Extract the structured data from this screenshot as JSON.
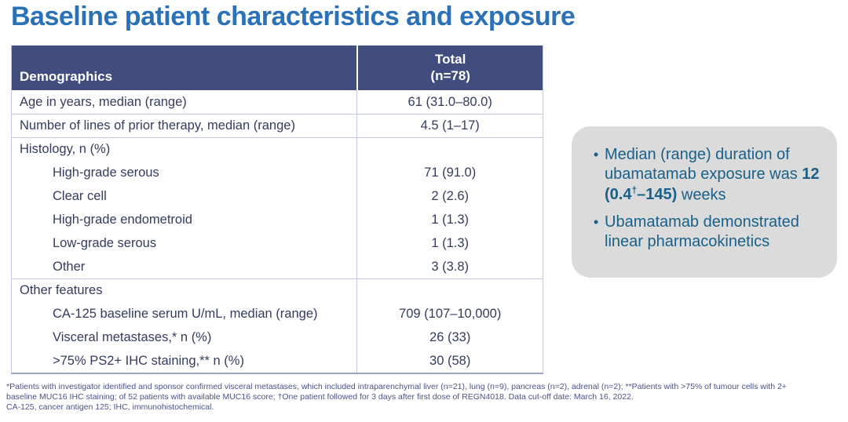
{
  "title": "Baseline patient characteristics and exposure",
  "table": {
    "header": {
      "col1": "Demographics",
      "col2_line1": "Total",
      "col2_line2": "(n=78)"
    },
    "rows": [
      {
        "label": "Age in years, median (range)",
        "value": "61 (31.0–80.0)"
      },
      {
        "label": "Number of lines of prior therapy, median (range)",
        "value": "4.5 (1–17)"
      },
      {
        "label": "Histology, n (%)",
        "value": ""
      },
      {
        "label": "High-grade serous",
        "value": "71 (91.0)"
      },
      {
        "label": "Clear cell",
        "value": "2 (2.6)"
      },
      {
        "label": "High-grade endometroid",
        "value": "1 (1.3)"
      },
      {
        "label": "Low-grade serous",
        "value": "1 (1.3)"
      },
      {
        "label": "Other",
        "value": "3 (3.8)"
      },
      {
        "label": "Other features",
        "value": ""
      },
      {
        "label": "CA-125 baseline serum U/mL, median (range)",
        "value": "709 (107–10,000)"
      },
      {
        "label": "Visceral metastases,* n (%)",
        "value": "26 (33)"
      },
      {
        "label": ">75% PS2+ IHC staining,** n (%)",
        "value": "30 (58)"
      }
    ]
  },
  "callout": {
    "bullet1_pre": "Median (range) duration of ubamatamab exposure was ",
    "bullet1_bold_pre": "12 (0.4",
    "bullet1_bold_sup": "†",
    "bullet1_bold_post": "–145)",
    "bullet1_post": " weeks",
    "bullet2": "Ubamatamab demonstrated linear pharmacokinetics",
    "bullet_glyph": "•"
  },
  "footnotes": [
    "*Patients with investigator identified and sponsor confirmed visceral metastases, which included intraparenchymal liver (n=21), lung (n=9), pancreas (n=2), adrenal (n=2); **Patients with >75% of tumour cells with 2+",
    "baseline MUC16 IHC staining; of 52 patients with available MUC16 score; †One patient followed for 3 days after first dose of REGN4018. Data cut-off date: March 16, 2022.",
    "CA-125, cancer antigen 125; IHC, immunohistochemical."
  ],
  "colors": {
    "title_blue": "#2B71B8",
    "table_header_bg": "#414D7E",
    "table_text": "#333C5E",
    "table_line": "#C4C9DF",
    "callout_bg": "#DBDBDB",
    "callout_text": "#1A6088",
    "footnote_text": "#4A5386"
  }
}
